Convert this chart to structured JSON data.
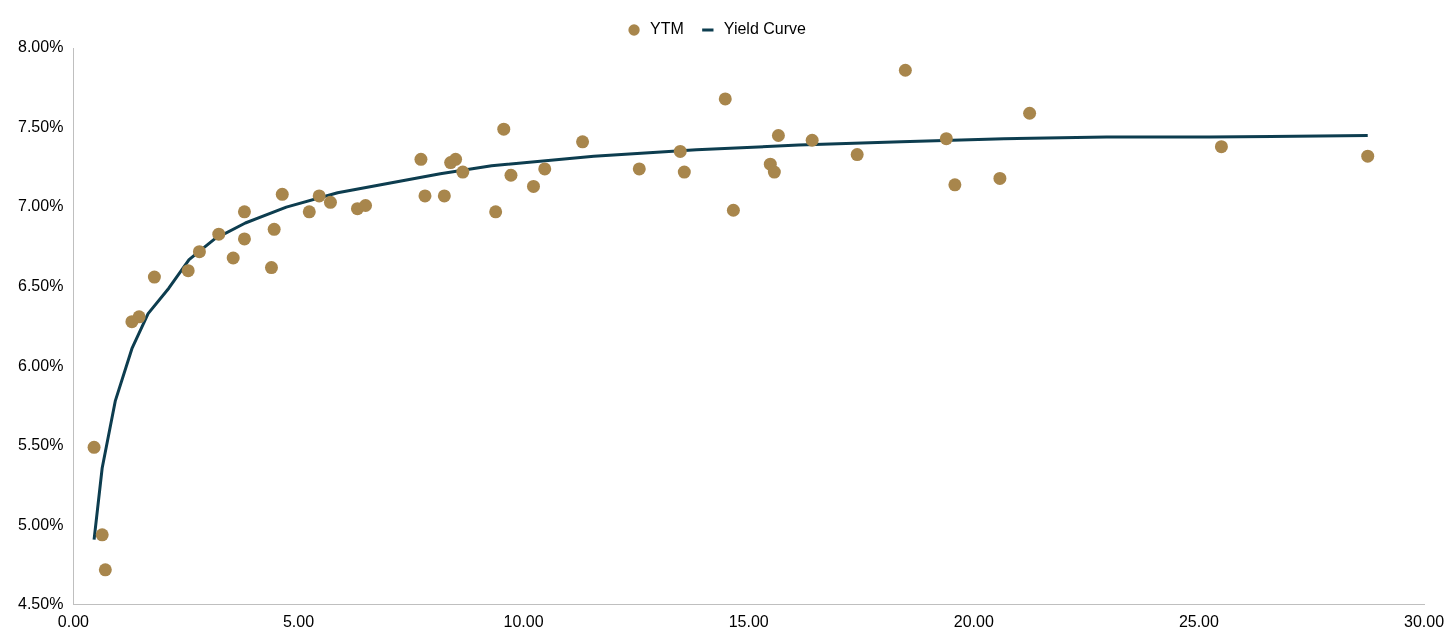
{
  "chart_data": {
    "type": "scatter",
    "legend": "top",
    "grid": false,
    "xlim": [
      0,
      30
    ],
    "xticks": [
      {
        "value": 0,
        "label": "0.00"
      },
      {
        "value": 5,
        "label": "5.00"
      },
      {
        "value": 10,
        "label": "10.00"
      },
      {
        "value": 15,
        "label": "15.00"
      },
      {
        "value": 20,
        "label": "20.00"
      },
      {
        "value": 25,
        "label": "25.00"
      },
      {
        "value": 30,
        "label": "30.00"
      }
    ],
    "ylim": [
      4.5,
      8
    ],
    "yticks": [
      {
        "value": 4.5,
        "label": "4.50%"
      },
      {
        "value": 5,
        "label": "5.00%"
      },
      {
        "value": 5.5,
        "label": "5.50%"
      },
      {
        "value": 6,
        "label": "6.00%"
      },
      {
        "value": 6.5,
        "label": "6.50%"
      },
      {
        "value": 7,
        "label": "7.00%"
      },
      {
        "value": 7.5,
        "label": "7.50%"
      },
      {
        "value": 8,
        "label": "8.00%"
      }
    ],
    "series": [
      {
        "name": "YTM",
        "type": "scatter",
        "marker": "circle",
        "color": "#a8864c",
        "x": [
          0.46,
          0.64,
          0.71,
          1.3,
          1.46,
          1.8,
          2.55,
          2.8,
          3.23,
          3.55,
          3.8,
          3.8,
          4.4,
          4.46,
          4.64,
          5.24,
          5.46,
          5.71,
          6.31,
          6.49,
          7.72,
          7.81,
          8.24,
          8.38,
          8.49,
          8.65,
          9.38,
          9.56,
          9.72,
          10.22,
          10.47,
          11.31,
          12.57,
          13.48,
          13.57,
          14.48,
          14.66,
          15.48,
          15.57,
          15.66,
          16.41,
          17.41,
          18.48,
          19.39,
          19.58,
          20.58,
          21.24,
          25.5,
          28.75
        ],
        "values": [
          5.49,
          4.94,
          4.72,
          6.28,
          6.31,
          6.56,
          6.6,
          6.72,
          6.83,
          6.68,
          6.97,
          6.8,
          6.62,
          6.86,
          7.08,
          6.97,
          7.07,
          7.03,
          6.99,
          7.01,
          7.3,
          7.07,
          7.07,
          7.28,
          7.3,
          7.22,
          6.97,
          7.49,
          7.2,
          7.13,
          7.24,
          7.41,
          7.24,
          7.35,
          7.22,
          7.68,
          6.98,
          7.27,
          7.22,
          7.45,
          7.42,
          7.33,
          7.86,
          7.43,
          7.14,
          7.18,
          7.59,
          7.38,
          7.32
        ]
      },
      {
        "name": "Yield Curve",
        "type": "line",
        "marker": "none",
        "line_style": "solid",
        "color": "#0d3d4f",
        "x": [
          0.46,
          0.64,
          0.93,
          1.3,
          1.66,
          2.12,
          2.57,
          3.14,
          3.82,
          4.73,
          5.87,
          7.01,
          8.15,
          9.29,
          11.56,
          13.84,
          16.11,
          18.39,
          20.67,
          22.95,
          25.23,
          28.75
        ],
        "values": [
          4.91,
          5.36,
          5.78,
          6.11,
          6.33,
          6.49,
          6.67,
          6.8,
          6.9,
          7.0,
          7.09,
          7.15,
          7.21,
          7.26,
          7.32,
          7.36,
          7.39,
          7.41,
          7.43,
          7.44,
          7.44,
          7.45
        ]
      }
    ]
  }
}
